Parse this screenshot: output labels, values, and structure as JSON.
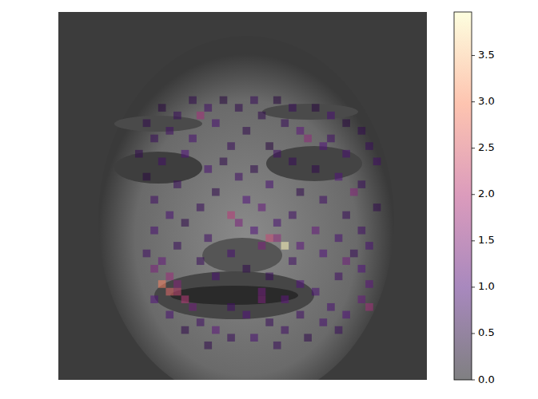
{
  "chart_data": {
    "type": "heatmap",
    "tick_labels": false,
    "xlim": [
      0,
      48
    ],
    "ylim": [
      0,
      48
    ],
    "cells": [
      [
        11,
        17,
        0.6
      ],
      [
        11,
        21,
        0.5
      ],
      [
        11,
        25,
        0.7
      ],
      [
        11,
        28,
        0.5
      ],
      [
        12,
        13,
        0.5
      ],
      [
        12,
        19,
        0.8
      ],
      [
        12,
        23,
        0.6
      ],
      [
        12,
        30,
        0.7
      ],
      [
        12,
        33,
        0.5
      ],
      [
        13,
        18,
        1.8
      ],
      [
        13,
        15,
        0.7
      ],
      [
        13,
        26,
        0.6
      ],
      [
        13,
        35,
        0.9
      ],
      [
        14,
        11,
        0.6
      ],
      [
        14,
        20,
        0.9
      ],
      [
        14,
        29,
        0.7
      ],
      [
        14,
        37,
        0.5
      ],
      [
        15,
        14,
        0.8
      ],
      [
        15,
        24,
        0.6
      ],
      [
        15,
        31,
        1.1
      ],
      [
        15,
        39,
        0.6
      ],
      [
        16,
        12,
        0.7
      ],
      [
        16,
        17,
        0.9
      ],
      [
        16,
        32,
        1.6
      ],
      [
        16,
        35,
        0.8
      ],
      [
        17,
        22,
        0.7
      ],
      [
        17,
        27,
        0.5
      ],
      [
        17,
        34,
        1.0
      ],
      [
        17,
        40,
        0.7
      ],
      [
        18,
        10,
        0.6
      ],
      [
        18,
        16,
        1.0
      ],
      [
        18,
        28,
        0.8
      ],
      [
        18,
        37,
        0.9
      ],
      [
        19,
        13,
        0.8
      ],
      [
        19,
        21,
        0.6
      ],
      [
        19,
        30,
        0.7
      ],
      [
        19,
        41,
        0.8
      ],
      [
        20,
        19,
        0.9
      ],
      [
        20,
        25,
        0.6
      ],
      [
        20,
        33,
        0.6
      ],
      [
        21,
        11,
        0.5
      ],
      [
        21,
        23,
        0.8
      ],
      [
        21,
        36,
        1.0
      ],
      [
        22,
        15,
        0.7
      ],
      [
        22,
        27,
        0.9
      ],
      [
        22,
        39,
        0.7
      ],
      [
        23,
        20,
        0.6
      ],
      [
        23,
        38,
        1.5
      ],
      [
        23,
        31,
        0.6
      ],
      [
        24,
        12,
        0.8
      ],
      [
        24,
        24,
        1.0
      ],
      [
        24,
        34,
        0.8
      ],
      [
        25,
        18,
        0.7
      ],
      [
        25,
        26,
        1.2
      ],
      [
        25,
        41,
        0.6
      ],
      [
        26,
        22,
        2.0
      ],
      [
        26,
        14,
        0.9
      ],
      [
        26,
        30,
        0.8
      ],
      [
        26,
        37,
        0.7
      ],
      [
        27,
        23,
        1.4
      ],
      [
        27,
        28,
        0.9
      ],
      [
        27,
        16,
        0.6
      ],
      [
        28,
        12,
        0.9
      ],
      [
        28,
        25,
        1.0
      ],
      [
        28,
        33,
        1.2
      ],
      [
        28,
        39,
        0.8
      ],
      [
        29,
        27,
        2.2
      ],
      [
        29,
        28,
        1.6
      ],
      [
        29,
        19,
        0.8
      ],
      [
        29,
        36,
        0.9
      ],
      [
        30,
        29,
        3.9
      ],
      [
        30,
        26,
        1.4
      ],
      [
        30,
        31,
        1.1
      ],
      [
        30,
        15,
        0.7
      ],
      [
        30,
        40,
        0.9
      ],
      [
        31,
        11,
        0.8
      ],
      [
        31,
        22,
        0.9
      ],
      [
        31,
        34,
        1.0
      ],
      [
        31,
        38,
        0.7
      ],
      [
        32,
        13,
        1.2
      ],
      [
        32,
        18,
        0.7
      ],
      [
        32,
        30,
        0.8
      ],
      [
        32,
        37,
        1.3
      ],
      [
        33,
        12,
        1.4
      ],
      [
        33,
        24,
        0.6
      ],
      [
        33,
        39,
        1.0
      ],
      [
        34,
        14,
        1.7
      ],
      [
        34,
        20,
        0.9
      ],
      [
        34,
        27,
        0.7
      ],
      [
        34,
        36,
        0.8
      ],
      [
        35,
        13,
        2.9
      ],
      [
        35,
        15,
        1.5
      ],
      [
        35,
        31,
        1.0
      ],
      [
        35,
        40,
        1.1
      ],
      [
        36,
        14,
        2.6
      ],
      [
        36,
        15,
        2.2
      ],
      [
        36,
        26,
        1.3
      ],
      [
        36,
        33,
        0.9
      ],
      [
        37,
        16,
        2.0
      ],
      [
        37,
        12,
        1.0
      ],
      [
        37,
        26,
        1.4
      ],
      [
        37,
        29,
        1.1
      ],
      [
        37,
        39,
        1.2
      ],
      [
        38,
        17,
        1.3
      ],
      [
        38,
        22,
        0.8
      ],
      [
        38,
        40,
        1.8
      ],
      [
        38,
        35,
        0.9
      ],
      [
        39,
        14,
        0.9
      ],
      [
        39,
        24,
        1.0
      ],
      [
        39,
        31,
        0.8
      ],
      [
        39,
        37,
        1.0
      ],
      [
        40,
        18,
        0.8
      ],
      [
        40,
        27,
        0.7
      ],
      [
        40,
        34,
        0.9
      ],
      [
        41,
        20,
        1.1
      ],
      [
        41,
        16,
        0.6
      ],
      [
        41,
        29,
        0.8
      ],
      [
        41,
        36,
        0.7
      ],
      [
        42,
        22,
        0.7
      ],
      [
        42,
        25,
        0.9
      ],
      [
        42,
        32,
        0.6
      ],
      [
        43,
        19,
        0.6
      ],
      [
        43,
        28,
        0.7
      ]
    ],
    "colorbar_range": [
      0,
      3.97
    ],
    "colorbar_ticks": [
      {
        "value": 0,
        "label": "0.0"
      },
      0.5,
      {
        "value": 1,
        "label": "1.0"
      },
      1.5,
      {
        "value": 2,
        "label": "2.0"
      },
      2.5,
      {
        "value": 3,
        "label": "3.0"
      },
      3.5
    ]
  }
}
